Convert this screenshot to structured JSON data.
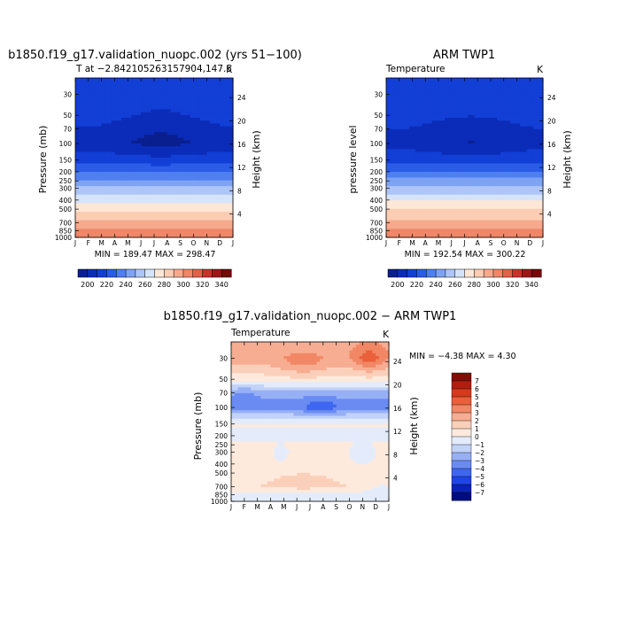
{
  "colors": {
    "temperature_scale": [
      "#0a1f8f",
      "#0b2cb8",
      "#123fd6",
      "#2a5ce8",
      "#4f7ff0",
      "#7fa3f3",
      "#adc5f7",
      "#d6e4fb",
      "#fde7d6",
      "#fbcdb3",
      "#f6a98c",
      "#ef8768",
      "#e2614a",
      "#c8322a",
      "#9c1616",
      "#730a0a"
    ],
    "difference_scale": [
      "#000c80",
      "#0a22b5",
      "#1f44e6",
      "#3f66f0",
      "#6a8cf2",
      "#97b0f5",
      "#c2d2f8",
      "#e4ecfb",
      "#fdeadc",
      "#fbd0ba",
      "#f7ad92",
      "#f18765",
      "#e9603b",
      "#d63a1d",
      "#b01e10",
      "#800e06"
    ],
    "accent": "#000000"
  },
  "charts": {
    "model": {
      "title": "b1850.f19_g17.validation_nuopc.002 (yrs 51−100)",
      "subtitle_left": "T at −2.842105263157904,147.5",
      "subtitle_right": "K",
      "ylabel_left": "Pressure (mb)",
      "ylabel_right": "Height (km)",
      "minmax": "MIN = 189.47  MAX = 298.47"
    },
    "obs": {
      "title": "ARM TWP1",
      "subtitle_left": "Temperature",
      "subtitle_right": "K",
      "ylabel_left": "pressure level",
      "ylabel_right": "Height (km)",
      "minmax": "MIN = 192.54  MAX = 300.22"
    },
    "diff": {
      "title": "b1850.f19_g17.validation_nuopc.002 − ARM TWP1",
      "subtitle_left": "Temperature",
      "subtitle_right": "K",
      "ylabel_left": "Pressure (mb)",
      "ylabel_right": "Height (km)",
      "minmax": "MIN =  −4.38  MAX =    4.30"
    }
  },
  "chart_data": [
    {
      "type": "heatmap",
      "title": "b1850.f19_g17.validation_nuopc.002 (yrs 51−100)",
      "xlabel": "",
      "ylabel": "Pressure (mb)",
      "x": [
        "J",
        "F",
        "M",
        "A",
        "M",
        "J",
        "J",
        "A",
        "S",
        "O",
        "N",
        "D",
        "J"
      ],
      "y_ticks": [
        "30",
        "50",
        "70",
        "100",
        "150",
        "200",
        "250",
        "300",
        "400",
        "500",
        "700",
        "850",
        "1000"
      ],
      "right_ticks": [
        "24",
        "20",
        "16",
        "12",
        "8",
        "4"
      ],
      "colorbar_ticks": [
        "200",
        "220",
        "240",
        "260",
        "280",
        "300",
        "320",
        "340"
      ],
      "units": "K",
      "min": 189.47,
      "max": 298.47,
      "pressure_levels": [
        30,
        50,
        70,
        100,
        150,
        200,
        250,
        300,
        400,
        500,
        700,
        850,
        1000
      ],
      "values_annual_mean": [
        205,
        202,
        195,
        191,
        205,
        220,
        232,
        242,
        258,
        268,
        283,
        292,
        298
      ]
    },
    {
      "type": "heatmap",
      "title": "ARM TWP1",
      "xlabel": "",
      "ylabel": "pressure level",
      "x": [
        "J",
        "F",
        "M",
        "A",
        "M",
        "J",
        "J",
        "A",
        "S",
        "O",
        "N",
        "D",
        "J"
      ],
      "y_ticks": [
        "30",
        "50",
        "70",
        "100",
        "150",
        "200",
        "250",
        "300",
        "400",
        "500",
        "700",
        "850",
        "1000"
      ],
      "right_ticks": [
        "24",
        "20",
        "16",
        "12",
        "8",
        "4"
      ],
      "colorbar_ticks": [
        "200",
        "220",
        "240",
        "260",
        "280",
        "300",
        "320",
        "340"
      ],
      "units": "K",
      "min": 192.54,
      "max": 300.22,
      "pressure_levels": [
        30,
        50,
        70,
        100,
        150,
        200,
        250,
        300,
        400,
        500,
        700,
        850,
        1000
      ],
      "values_annual_mean": [
        208,
        204,
        196,
        193,
        206,
        221,
        233,
        243,
        259,
        269,
        284,
        293,
        300
      ]
    },
    {
      "type": "heatmap",
      "title": "b1850.f19_g17.validation_nuopc.002 − ARM TWP1",
      "xlabel": "",
      "ylabel": "Pressure (mb)",
      "x": [
        "J",
        "F",
        "M",
        "A",
        "M",
        "J",
        "J",
        "A",
        "S",
        "O",
        "N",
        "D",
        "J"
      ],
      "y_ticks": [
        "30",
        "50",
        "70",
        "100",
        "150",
        "200",
        "250",
        "300",
        "400",
        "500",
        "700",
        "850",
        "1000"
      ],
      "right_ticks": [
        "24",
        "20",
        "16",
        "12",
        "8",
        "4"
      ],
      "colorbar_ticks": [
        "7",
        "6",
        "5",
        "4",
        "3",
        "2",
        "1",
        "0",
        "−1",
        "−2",
        "−3",
        "−4",
        "−5",
        "−6",
        "−7"
      ],
      "units": "K",
      "min": -4.38,
      "max": 4.3,
      "pressure_levels": [
        30,
        50,
        70,
        100,
        150,
        200,
        250,
        300,
        400,
        500,
        700,
        850,
        1000
      ],
      "values_annual_mean": [
        2.5,
        0.5,
        -2.5,
        -3.5,
        0.2,
        -0.3,
        0.3,
        0.2,
        0.3,
        0.5,
        1.0,
        -0.5,
        -0.3
      ]
    }
  ]
}
